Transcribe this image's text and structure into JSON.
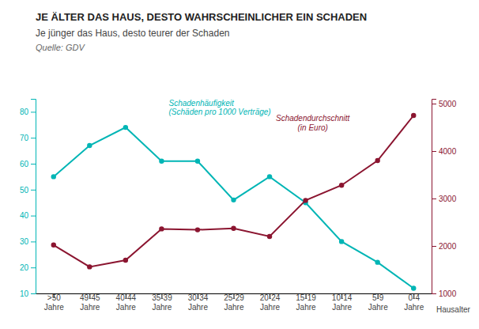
{
  "chart_data": {
    "type": "line",
    "title": "JE ÄLTER DAS HAUS, DESTO WAHRSCHEINLICHER EIN SCHADEN",
    "subtitle": "Je jünger das Haus, desto teurer der Schaden",
    "source": "Quelle: GDV",
    "x_label": "Hausalter",
    "categories": [
      ">50\nJahre",
      "49-45\nJahre",
      "40-44\nJahre",
      "35-39\nJahre",
      "30-34\nJahre",
      "25-29\nJahre",
      "20-24\nJahre",
      "15-19\nJahre",
      "10-14\nJahre",
      "5-9\nJahre",
      "0-4\nJahre"
    ],
    "series": [
      {
        "color": "#00B5B5",
        "marker": "circle",
        "values": [
          55,
          67,
          74,
          61,
          61,
          46,
          55,
          45,
          30,
          22,
          12
        ]
      },
      {
        "color": "#8B1530",
        "marker": "circle",
        "axis": "y2",
        "values": [
          2020,
          1560,
          1700,
          2360,
          2340,
          2370,
          2200,
          2960,
          3280,
          3800,
          4750
        ]
      }
    ],
    "annotations": [
      "Schadenhäufigkeit\n(Schäden pro 1000 Verträge)",
      "Schadendurchschnitt\n(in Euro)"
    ],
    "ylim": [
      10,
      85
    ],
    "yticks": [
      10,
      20,
      30,
      40,
      50,
      60,
      70,
      80
    ],
    "y2lim": [
      1000,
      5100
    ],
    "y2ticks": [
      1000,
      2000,
      3000,
      4000,
      5000
    ],
    "grid": false
  }
}
